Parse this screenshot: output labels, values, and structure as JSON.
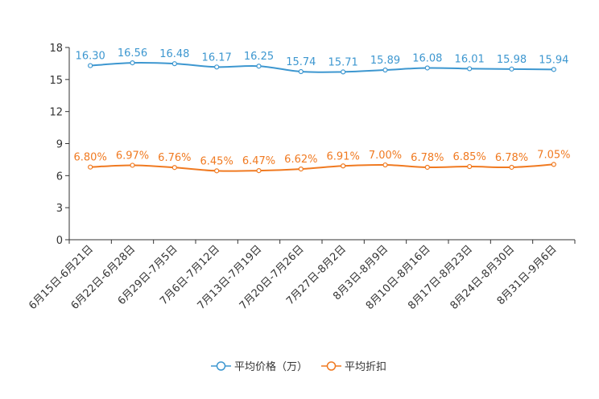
{
  "chart_data": {
    "type": "line",
    "title": "",
    "xlabel": "",
    "ylabel": "",
    "ylim": [
      0,
      18
    ],
    "yticks": [
      0,
      3,
      6,
      9,
      12,
      15,
      18
    ],
    "grid": false,
    "legend_position": "bottom-center",
    "categories": [
      "6月15日-6月21日",
      "6月22日-6月28日",
      "6月29日-7月5日",
      "7月6日-7月12日",
      "7月13日-7月19日",
      "7月20日-7月26日",
      "7月27日-8月2日",
      "8月3日-8月9日",
      "8月10日-8月16日",
      "8月17日-8月23日",
      "8月24日-8月30日",
      "8月31日-9月6日"
    ],
    "series": [
      {
        "name": "平均价格（万）",
        "color": "#3d97d0",
        "values": [
          16.3,
          16.56,
          16.48,
          16.17,
          16.25,
          15.74,
          15.71,
          15.89,
          16.08,
          16.01,
          15.98,
          15.94
        ],
        "labels": [
          "16.30",
          "16.56",
          "16.48",
          "16.17",
          "16.25",
          "15.74",
          "15.71",
          "15.89",
          "16.08",
          "16.01",
          "15.98",
          "15.94"
        ]
      },
      {
        "name": "平均折扣",
        "color": "#f07a21",
        "values": [
          6.8,
          6.97,
          6.76,
          6.45,
          6.47,
          6.62,
          6.91,
          7.0,
          6.78,
          6.85,
          6.78,
          7.05
        ],
        "labels": [
          "6.80%",
          "6.97%",
          "6.76%",
          "6.45%",
          "6.47%",
          "6.62%",
          "6.91%",
          "7.00%",
          "6.78%",
          "6.85%",
          "6.78%",
          "7.05%"
        ]
      }
    ]
  }
}
